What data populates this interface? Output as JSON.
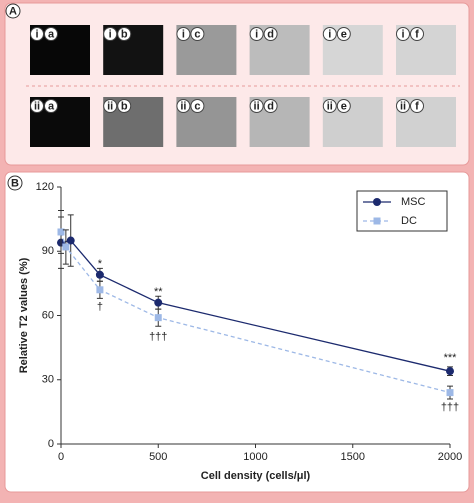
{
  "panel_a": {
    "label": "A",
    "columns": [
      "a",
      "b",
      "c",
      "d",
      "e",
      "f"
    ],
    "rows": [
      {
        "prefix": "i"
      },
      {
        "prefix": "ii"
      }
    ]
  },
  "panel_b": {
    "label": "B"
  },
  "chart_data": {
    "type": "line",
    "x_label": "Cell density (cells/μl)",
    "y_label": "Relative T2 values (%)",
    "xlim": [
      0,
      2000
    ],
    "xticks": [
      0,
      500,
      1000,
      1500,
      2000
    ],
    "ylim": [
      0,
      120
    ],
    "yticks": [
      0,
      30,
      60,
      90,
      120
    ],
    "grid": false,
    "legend": "top-right",
    "series": [
      {
        "name": "MSC",
        "color": "#1c2a6e",
        "style": "solid",
        "marker": "circle",
        "x": [
          0,
          50,
          200,
          500,
          2000
        ],
        "values": [
          94,
          95,
          79,
          66,
          34
        ],
        "errors": [
          12,
          12,
          3,
          3,
          2
        ]
      },
      {
        "name": "DC",
        "color": "#9db8e6",
        "style": "dashed",
        "marker": "square",
        "x": [
          0,
          25,
          200,
          500,
          2000
        ],
        "values": [
          99,
          92,
          72,
          59,
          24
        ],
        "errors": [
          10,
          8,
          4,
          4,
          3
        ]
      }
    ],
    "annotations": [
      {
        "text": "*",
        "x": 200,
        "y": 84
      },
      {
        "text": "**",
        "x": 500,
        "y": 71
      },
      {
        "text": "***",
        "x": 2000,
        "y": 40
      },
      {
        "text": "†",
        "x": 200,
        "y": 64
      },
      {
        "text": "†††",
        "x": 500,
        "y": 50
      },
      {
        "text": "†††",
        "x": 2000,
        "y": 17
      }
    ]
  }
}
